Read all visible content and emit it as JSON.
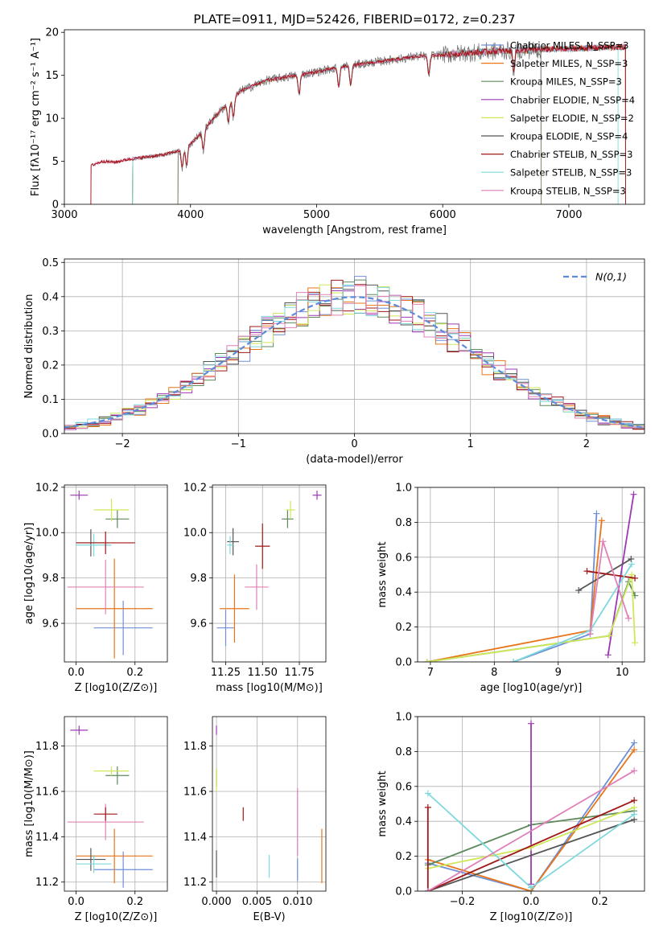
{
  "colors": [
    "#6e8fd6",
    "#e8751a",
    "#5e8a5e",
    "#9e38b5",
    "#cfe85a",
    "#555555",
    "#a01818",
    "#7fd8dc",
    "#e080b8"
  ],
  "chart_data": [
    {
      "id": "spectrum",
      "type": "line",
      "title": "PLATE=0911, MJD=52426, FIBERID=0172, z=0.237",
      "xlabel": "wavelength [Angstrom, rest frame]",
      "ylabel": "Flux [fλ10⁻¹⁷ erg cm⁻² s⁻¹ A⁻¹]",
      "xlim": [
        3000,
        7600
      ],
      "ylim": [
        0,
        20.3
      ],
      "xticks": [
        3000,
        4000,
        5000,
        6000,
        7000
      ],
      "yticks": [
        0,
        5,
        10,
        15,
        20
      ],
      "legend_position": "upper-right",
      "legend": [
        "Chabrier MILES, N_SSP=3",
        "Salpeter MILES, N_SSP=3",
        "Kroupa MILES, N_SSP=3",
        "Chabrier ELODIE, N_SSP=4",
        "Salpeter ELODIE, N_SSP=2",
        "Kroupa ELODIE, N_SSP=4",
        "Chabrier STELIB, N_SSP=3",
        "Salpeter STELIB, N_SSP=3",
        "Kroupa STELIB, N_SSP=3"
      ],
      "model_ranges": [
        [
          3540,
          7450
        ],
        [
          3540,
          7450
        ],
        [
          3540,
          7450
        ],
        [
          3900,
          6780
        ],
        [
          3900,
          6780
        ],
        [
          3900,
          6780
        ],
        [
          3210,
          7450
        ],
        [
          3540,
          7390
        ],
        [
          3210,
          7450
        ]
      ],
      "spectrum_profile": {
        "x": [
          3210,
          3300,
          3400,
          3500,
          3600,
          3700,
          3800,
          3900,
          4000,
          4100,
          4200,
          4300,
          4400,
          4500,
          4600,
          4800,
          5000,
          5200,
          5400,
          5600,
          5800,
          6000,
          6200,
          6400,
          6600,
          6800,
          7000,
          7200,
          7450
        ],
        "y": [
          4.5,
          5.0,
          4.9,
          5.2,
          5.4,
          5.6,
          5.8,
          6.2,
          7.0,
          8.5,
          10.3,
          11.8,
          13.2,
          13.8,
          14.4,
          14.9,
          15.4,
          16.0,
          16.4,
          16.8,
          17.2,
          17.4,
          17.6,
          17.8,
          17.9,
          18.0,
          18.1,
          18.2,
          18.3
        ]
      },
      "absorption_lines": [
        3934,
        3969,
        4102,
        4300,
        4340,
        4861,
        5175,
        5270,
        5890,
        6563
      ]
    },
    {
      "id": "residuals",
      "type": "histogram",
      "xlabel": "(data-model)/error",
      "ylabel": "Normed distribution",
      "xlim": [
        -2.5,
        2.5
      ],
      "ylim": [
        0,
        0.51
      ],
      "xticks": [
        -2,
        -1,
        0,
        1,
        2
      ],
      "yticks": [
        0.0,
        0.1,
        0.2,
        0.3,
        0.4,
        0.5
      ],
      "bin_width": 0.1,
      "reference_legend": "N(0,1)",
      "legend_position": "upper-right"
    },
    {
      "id": "age-vs-Z",
      "type": "scatter",
      "xlabel": "Z [log10(Z/Z⊙)]",
      "ylabel": "age  [log10(age/yr)]",
      "xlim": [
        -0.04,
        0.31
      ],
      "ylim": [
        9.43,
        10.21
      ],
      "xticks": [
        0.0,
        0.2
      ],
      "yticks": [
        9.6,
        9.8,
        10.0,
        10.2
      ],
      "points": [
        {
          "c": 0,
          "x": 0.16,
          "y": 9.58,
          "xe": 0.1,
          "ye": 0.12
        },
        {
          "c": 1,
          "x": 0.13,
          "y": 9.665,
          "xe": 0.13,
          "ye": 0.22
        },
        {
          "c": 8,
          "x": 0.1,
          "y": 9.76,
          "xe": 0.13,
          "ye": 0.12
        },
        {
          "c": 5,
          "x": 0.05,
          "y": 9.955,
          "xe": 0.05,
          "ye": 0.06
        },
        {
          "c": 7,
          "x": 0.06,
          "y": 9.945,
          "xe": 0.06,
          "ye": 0.05
        },
        {
          "c": 6,
          "x": 0.1,
          "y": 9.955,
          "xe": 0.1,
          "ye": 0.05
        },
        {
          "c": 2,
          "x": 0.14,
          "y": 10.06,
          "xe": 0.04,
          "ye": 0.04
        },
        {
          "c": 4,
          "x": 0.12,
          "y": 10.1,
          "xe": 0.06,
          "ye": 0.05
        },
        {
          "c": 3,
          "x": 0.01,
          "y": 10.165,
          "xe": 0.03,
          "ye": 0.02
        }
      ]
    },
    {
      "id": "age-vs-mass",
      "type": "scatter",
      "xlabel": "mass [log10(M/M⊙)]",
      "ylabel": "",
      "xlim": [
        11.16,
        11.93
      ],
      "ylim": [
        9.43,
        10.21
      ],
      "xticks": [
        11.25,
        11.5,
        11.75
      ],
      "yticks": [
        9.6,
        9.8,
        10.0,
        10.2
      ],
      "points": [
        {
          "c": 0,
          "x": 11.25,
          "y": 9.58,
          "xe": 0.06,
          "ye": 0.08
        },
        {
          "c": 1,
          "x": 11.31,
          "y": 9.665,
          "xe": 0.1,
          "ye": 0.15
        },
        {
          "c": 8,
          "x": 11.46,
          "y": 9.76,
          "xe": 0.08,
          "ye": 0.1
        },
        {
          "c": 5,
          "x": 11.3,
          "y": 9.96,
          "xe": 0.04,
          "ye": 0.06
        },
        {
          "c": 7,
          "x": 11.28,
          "y": 9.945,
          "xe": 0.02,
          "ye": 0.04
        },
        {
          "c": 6,
          "x": 11.5,
          "y": 9.94,
          "xe": 0.05,
          "ye": 0.1
        },
        {
          "c": 2,
          "x": 11.67,
          "y": 10.06,
          "xe": 0.04,
          "ye": 0.04
        },
        {
          "c": 4,
          "x": 11.69,
          "y": 10.1,
          "xe": 0.03,
          "ye": 0.04
        },
        {
          "c": 3,
          "x": 11.87,
          "y": 10.165,
          "xe": 0.03,
          "ye": 0.02
        }
      ]
    },
    {
      "id": "massweight-vs-age",
      "type": "line",
      "xlabel": "age  [log10(age/yr)]",
      "ylabel": "mass weight",
      "xlim": [
        6.8,
        10.35
      ],
      "ylim": [
        0,
        1.0
      ],
      "xticks": [
        7,
        8,
        9,
        10
      ],
      "yticks": [
        0.0,
        0.2,
        0.4,
        0.6,
        0.8,
        1.0
      ],
      "series": [
        {
          "c": 0,
          "x": [
            8.3,
            9.5,
            9.6
          ],
          "y": [
            0.0,
            0.16,
            0.85
          ]
        },
        {
          "c": 1,
          "x": [
            6.95,
            9.5,
            9.68
          ],
          "y": [
            0.0,
            0.18,
            0.81
          ]
        },
        {
          "c": 2,
          "x": [
            6.95,
            9.8,
            10.1,
            10.2
          ],
          "y": [
            0.0,
            0.15,
            0.46,
            0.38
          ]
        },
        {
          "c": 3,
          "x": [
            9.78,
            10.18
          ],
          "y": [
            0.04,
            0.96
          ]
        },
        {
          "c": 4,
          "x": [
            6.95,
            9.8,
            10.15,
            10.2
          ],
          "y": [
            0.0,
            0.15,
            0.5,
            0.11
          ]
        },
        {
          "c": 5,
          "x": [
            9.32,
            10.14
          ],
          "y": [
            0.41,
            0.59
          ]
        },
        {
          "c": 6,
          "x": [
            9.45,
            10.2
          ],
          "y": [
            0.52,
            0.48
          ]
        },
        {
          "c": 7,
          "x": [
            8.3,
            9.5,
            10.15
          ],
          "y": [
            0.0,
            0.18,
            0.56
          ]
        },
        {
          "c": 8,
          "x": [
            9.5,
            9.7,
            10.1
          ],
          "y": [
            0.16,
            0.69,
            0.25
          ]
        }
      ]
    },
    {
      "id": "mass-vs-Z",
      "type": "scatter",
      "xlabel": "Z [log10(Z/Z⊙)]",
      "ylabel": "mass [log10(M/M⊙)]",
      "xlim": [
        -0.04,
        0.31
      ],
      "ylim": [
        11.16,
        11.93
      ],
      "xticks": [
        0.0,
        0.2
      ],
      "yticks": [
        11.2,
        11.4,
        11.6,
        11.8
      ],
      "points": [
        {
          "c": 0,
          "x": 0.16,
          "y": 11.255,
          "xe": 0.1,
          "ye": 0.08
        },
        {
          "c": 1,
          "x": 0.13,
          "y": 11.315,
          "xe": 0.13,
          "ye": 0.12
        },
        {
          "c": 8,
          "x": 0.1,
          "y": 11.465,
          "xe": 0.13,
          "ye": 0.08
        },
        {
          "c": 5,
          "x": 0.05,
          "y": 11.3,
          "xe": 0.05,
          "ye": 0.05
        },
        {
          "c": 7,
          "x": 0.06,
          "y": 11.28,
          "xe": 0.06,
          "ye": 0.04
        },
        {
          "c": 6,
          "x": 0.1,
          "y": 11.5,
          "xe": 0.04,
          "ye": 0.03
        },
        {
          "c": 2,
          "x": 0.14,
          "y": 11.67,
          "xe": 0.04,
          "ye": 0.04
        },
        {
          "c": 4,
          "x": 0.12,
          "y": 11.69,
          "xe": 0.06,
          "ye": 0.02
        },
        {
          "c": 3,
          "x": 0.01,
          "y": 11.87,
          "xe": 0.03,
          "ye": 0.02
        }
      ]
    },
    {
      "id": "mass-vs-EBV",
      "type": "scatter",
      "xlabel": "E(B-V)",
      "ylabel": "",
      "xlim": [
        -0.0005,
        0.0135
      ],
      "ylim": [
        11.16,
        11.93
      ],
      "xticks": [
        0.0,
        0.005,
        0.01
      ],
      "yticks": [
        11.2,
        11.4,
        11.6,
        11.8
      ],
      "points": [
        {
          "c": 0,
          "x": 0.01,
          "y": 11.255,
          "xe": 0,
          "ye": 0.05
        },
        {
          "c": 1,
          "x": 0.013,
          "y": 11.315,
          "xe": 0,
          "ye": 0.12
        },
        {
          "c": 8,
          "x": 0.01,
          "y": 11.465,
          "xe": 0,
          "ye": 0.15
        },
        {
          "c": 5,
          "x": 0.0,
          "y": 11.28,
          "xe": 0,
          "ye": 0.06
        },
        {
          "c": 7,
          "x": 0.0065,
          "y": 11.27,
          "xe": 0,
          "ye": 0.05
        },
        {
          "c": 6,
          "x": 0.0033,
          "y": 11.5,
          "xe": 0,
          "ye": 0.03
        },
        {
          "c": 2,
          "x": 0.0,
          "y": 11.66,
          "xe": 0,
          "ye": 0.04
        },
        {
          "c": 4,
          "x": 0.0,
          "y": 11.65,
          "xe": 0,
          "ye": 0.05
        },
        {
          "c": 3,
          "x": 0.0,
          "y": 11.87,
          "xe": 0,
          "ye": 0.02
        }
      ]
    },
    {
      "id": "massweight-vs-Z",
      "type": "line",
      "xlabel": "Z [log10(Z/Z⊙)]",
      "ylabel": "mass weight",
      "xlim": [
        -0.33,
        0.33
      ],
      "ylim": [
        0,
        1.0
      ],
      "xticks": [
        -0.2,
        0.0,
        0.2
      ],
      "yticks": [
        0.0,
        0.2,
        0.4,
        0.6,
        0.8,
        1.0
      ],
      "series": [
        {
          "c": 0,
          "x": [
            -0.3,
            0.0,
            0.3
          ],
          "y": [
            0.16,
            0.0,
            0.85
          ]
        },
        {
          "c": 1,
          "x": [
            -0.3,
            0.0,
            0.3
          ],
          "y": [
            0.18,
            0.0,
            0.81
          ]
        },
        {
          "c": 2,
          "x": [
            -0.3,
            0.0,
            0.3
          ],
          "y": [
            0.15,
            0.38,
            0.46
          ]
        },
        {
          "c": 3,
          "x": [
            0.0,
            0.0
          ],
          "y": [
            0.04,
            0.96
          ]
        },
        {
          "c": 4,
          "x": [
            -0.3,
            0.0,
            0.3
          ],
          "y": [
            0.13,
            0.25,
            0.48
          ]
        },
        {
          "c": 5,
          "x": [
            -0.3,
            0.3
          ],
          "y": [
            0.0,
            0.41
          ]
        },
        {
          "c": 6,
          "x": [
            -0.3,
            -0.3,
            0.3
          ],
          "y": [
            0.48,
            0.0,
            0.52
          ]
        },
        {
          "c": 7,
          "x": [
            -0.3,
            0.0,
            0.3
          ],
          "y": [
            0.56,
            0.02,
            0.44
          ]
        },
        {
          "c": 8,
          "x": [
            -0.3,
            0.3
          ],
          "y": [
            0.0,
            0.69
          ]
        }
      ]
    }
  ]
}
